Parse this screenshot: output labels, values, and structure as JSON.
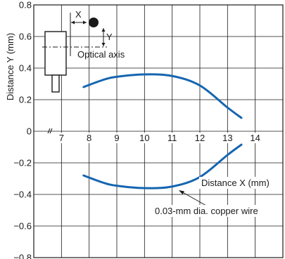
{
  "chart_data": {
    "type": "line",
    "xlabel": "Distance X (mm)",
    "ylabel": "Distance Y (mm)",
    "xlim": [
      6,
      15
    ],
    "ylim": [
      -0.8,
      0.8
    ],
    "x_ticks": [
      "7",
      "8",
      "9",
      "10",
      "11",
      "12",
      "13",
      "14"
    ],
    "y_ticks": [
      "0.8",
      "0.6",
      "0.4",
      "0.2",
      "0",
      "−0.2",
      "−0.4",
      "−0.6",
      "−0.8"
    ],
    "grid": true,
    "series": [
      {
        "color": "#1565b0",
        "points": [
          [
            7.8,
            0.28
          ],
          [
            8.5,
            0.325
          ],
          [
            9.0,
            0.345
          ],
          [
            10.0,
            0.36
          ],
          [
            11.0,
            0.35
          ],
          [
            12.0,
            0.29
          ],
          [
            13.0,
            0.15
          ],
          [
            13.5,
            0.085
          ]
        ]
      },
      {
        "color": "#1565b0",
        "points": [
          [
            7.8,
            -0.28
          ],
          [
            8.5,
            -0.325
          ],
          [
            9.0,
            -0.345
          ],
          [
            10.0,
            -0.36
          ],
          [
            11.0,
            -0.35
          ],
          [
            12.0,
            -0.29
          ],
          [
            13.0,
            -0.15
          ],
          [
            13.5,
            -0.085
          ]
        ]
      }
    ],
    "annotations": {
      "x_symbol": "X",
      "y_symbol": "Y",
      "optical_axis": "Optical axis",
      "wire_label": "0.03-mm dia. copper wire"
    }
  }
}
